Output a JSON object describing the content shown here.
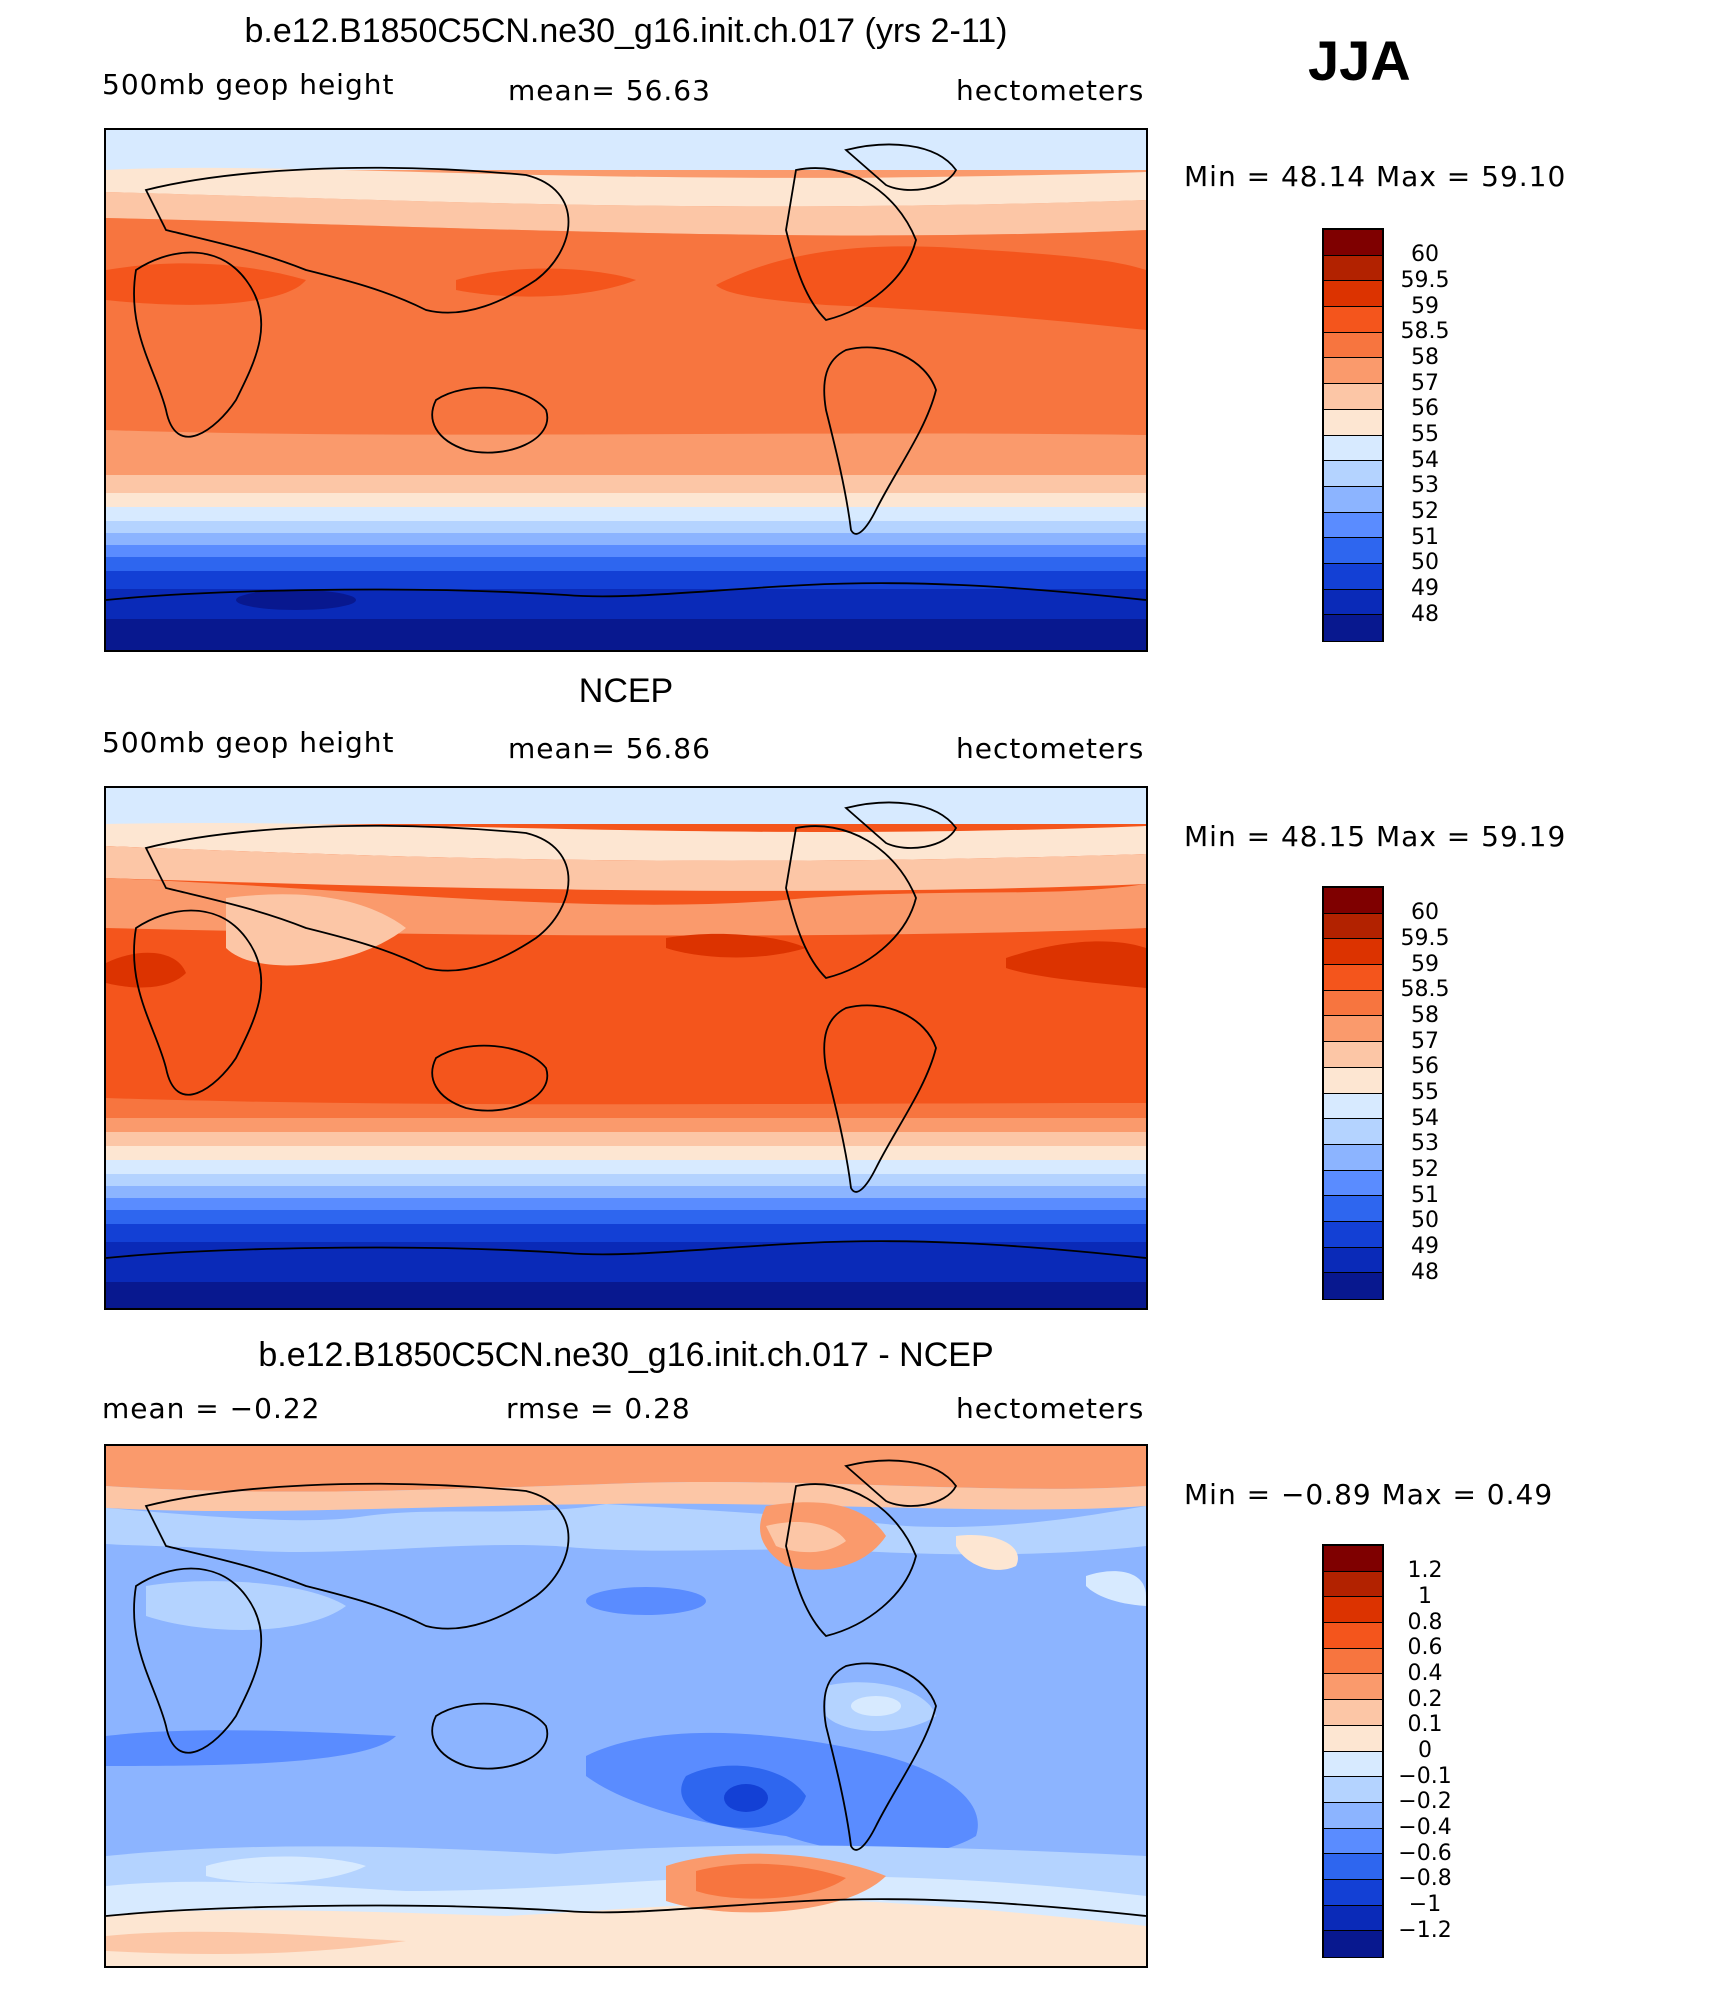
{
  "season": "JJA",
  "panels": [
    {
      "title": "b.e12.B1850C5CN.ne30_g16.init.ch.017 (yrs 2-11)",
      "left_label": "500mb geop height",
      "center_label": "mean=  56.63",
      "right_label": "hectometers",
      "min_max": "Min =  48.14 Max =  59.10",
      "colorbar": {
        "labels": [
          "60",
          "59.5",
          "59",
          "58.5",
          "58",
          "57",
          "56",
          "55",
          "54",
          "53",
          "52",
          "51",
          "50",
          "49",
          "48"
        ],
        "colors": [
          "#7f0000",
          "#b22200",
          "#dc3300",
          "#f4551c",
          "#f7753f",
          "#fa9a6c",
          "#fcc6a6",
          "#fde6d2",
          "#d7eaff",
          "#b4d3ff",
          "#8cb4ff",
          "#5a8cff",
          "#2e66ef",
          "#1340d5",
          "#0a2ab8",
          "#08188f"
        ]
      }
    },
    {
      "title": "NCEP",
      "left_label": "500mb geop height",
      "center_label": "mean=  56.86",
      "right_label": "hectometers",
      "min_max": "Min =  48.15 Max =  59.19",
      "colorbar": {
        "labels": [
          "60",
          "59.5",
          "59",
          "58.5",
          "58",
          "57",
          "56",
          "55",
          "54",
          "53",
          "52",
          "51",
          "50",
          "49",
          "48"
        ],
        "colors": [
          "#7f0000",
          "#b22200",
          "#dc3300",
          "#f4551c",
          "#f7753f",
          "#fa9a6c",
          "#fcc6a6",
          "#fde6d2",
          "#d7eaff",
          "#b4d3ff",
          "#8cb4ff",
          "#5a8cff",
          "#2e66ef",
          "#1340d5",
          "#0a2ab8",
          "#08188f"
        ]
      }
    },
    {
      "title": "b.e12.B1850C5CN.ne30_g16.init.ch.017 - NCEP",
      "left_label": "mean =  −0.22",
      "center_label": "rmse =   0.28",
      "right_label": "hectometers",
      "min_max": "Min =  −0.89 Max =   0.49",
      "colorbar": {
        "labels": [
          "1.2",
          "1",
          "0.8",
          "0.6",
          "0.4",
          "0.2",
          "0.1",
          "0",
          "−0.1",
          "−0.2",
          "−0.4",
          "−0.6",
          "−0.8",
          "−1",
          "−1.2"
        ],
        "colors": [
          "#7f0000",
          "#b22200",
          "#dc3300",
          "#f4551c",
          "#f7753f",
          "#fa9a6c",
          "#fcc6a6",
          "#fde6d2",
          "#d7eaff",
          "#b4d3ff",
          "#8cb4ff",
          "#5a8cff",
          "#2e66ef",
          "#1340d5",
          "#0a2ab8",
          "#08188f"
        ]
      }
    }
  ]
}
